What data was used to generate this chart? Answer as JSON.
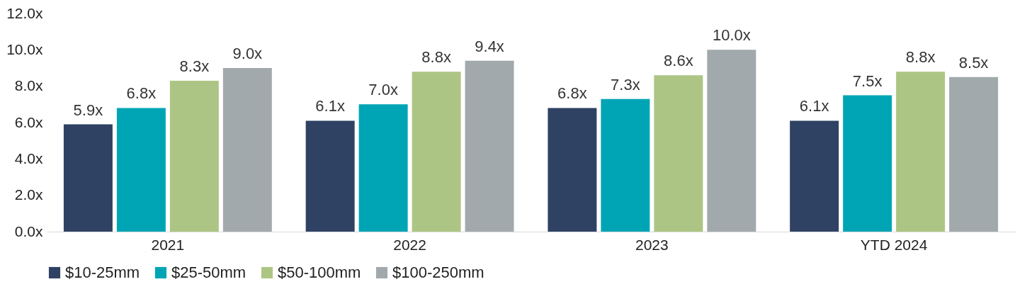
{
  "chart_data": {
    "type": "bar",
    "categories": [
      "2021",
      "2022",
      "2023",
      "YTD 2024"
    ],
    "series": [
      {
        "name": "$10-25mm",
        "color": "#2f4263",
        "values": [
          5.9,
          6.1,
          6.8,
          6.1
        ],
        "value_labels": [
          "5.9x",
          "6.1x",
          "6.8x",
          "6.1x"
        ]
      },
      {
        "name": "$25-50mm",
        "color": "#00a5b5",
        "values": [
          6.8,
          7.0,
          7.3,
          7.5
        ],
        "value_labels": [
          "6.8x",
          "7.0x",
          "7.3x",
          "7.5x"
        ]
      },
      {
        "name": "$50-100mm",
        "color": "#adc584",
        "values": [
          8.3,
          8.8,
          8.6,
          8.8
        ],
        "value_labels": [
          "8.3x",
          "8.8x",
          "8.6x",
          "8.8x"
        ]
      },
      {
        "name": "$100-250mm",
        "color": "#a2a9ad",
        "values": [
          9.0,
          9.4,
          10.0,
          8.5
        ],
        "value_labels": [
          "9.0x",
          "9.4x",
          "10.0x",
          "8.5x"
        ]
      }
    ],
    "ylim": [
      0,
      12
    ],
    "yticks": [
      {
        "value": 0,
        "label": "0.0x"
      },
      {
        "value": 2,
        "label": "2.0x"
      },
      {
        "value": 4,
        "label": "4.0x"
      },
      {
        "value": 6,
        "label": "6.0x"
      },
      {
        "value": 8,
        "label": "8.0x"
      },
      {
        "value": 10,
        "label": "10.0x"
      },
      {
        "value": 12,
        "label": "12.0x"
      }
    ],
    "grid": false,
    "legend": "bottom"
  }
}
